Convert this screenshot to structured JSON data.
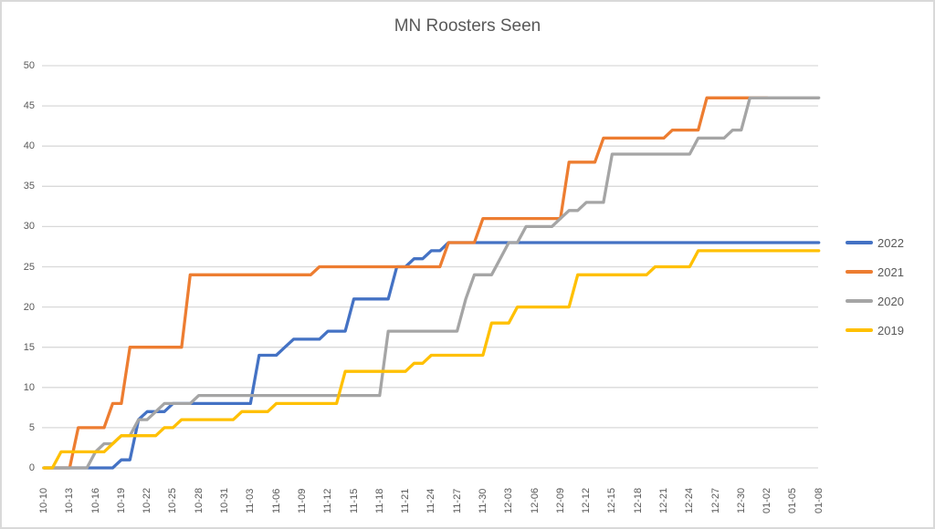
{
  "chart_data": {
    "type": "line",
    "title": "MN Roosters Seen",
    "x_axis": {
      "tick_labels": [
        "10-10",
        "10-13",
        "10-16",
        "10-19",
        "10-22",
        "10-25",
        "10-28",
        "10-31",
        "11-03",
        "11-06",
        "11-09",
        "11-12",
        "11-15",
        "11-18",
        "11-21",
        "11-24",
        "11-27",
        "11-30",
        "12-03",
        "12-06",
        "12-09",
        "12-12",
        "12-15",
        "12-18",
        "12-21",
        "12-24",
        "12-27",
        "12-30",
        "01-02",
        "01-05",
        "01-08"
      ],
      "tick_interval_days": 3,
      "label_rotation_deg": 90
    },
    "y_axis": {
      "tick_labels": [
        "0",
        "5",
        "10",
        "15",
        "20",
        "25",
        "30",
        "35",
        "40",
        "45",
        "50"
      ],
      "min": 0,
      "max": 50,
      "step": 5
    },
    "grid": "horizontal",
    "legend_position": "right",
    "series": [
      {
        "name": "2022",
        "color": "#4472C4",
        "points_date_value": [
          [
            "10-10",
            0
          ],
          [
            "10-19",
            1
          ],
          [
            "10-21",
            6
          ],
          [
            "10-22",
            7
          ],
          [
            "10-25",
            8
          ],
          [
            "11-04",
            14
          ],
          [
            "11-07",
            15
          ],
          [
            "11-08",
            16
          ],
          [
            "11-12",
            17
          ],
          [
            "11-15",
            21
          ],
          [
            "11-20",
            25
          ],
          [
            "11-22",
            26
          ],
          [
            "11-24",
            27
          ],
          [
            "11-26",
            28
          ],
          [
            "01-08",
            28
          ]
        ]
      },
      {
        "name": "2021",
        "color": "#ED7D31",
        "points_date_value": [
          [
            "10-10",
            0
          ],
          [
            "10-14",
            5
          ],
          [
            "10-18",
            8
          ],
          [
            "10-20",
            15
          ],
          [
            "10-27",
            24
          ],
          [
            "11-11",
            25
          ],
          [
            "11-26",
            28
          ],
          [
            "11-30",
            31
          ],
          [
            "12-10",
            38
          ],
          [
            "12-14",
            41
          ],
          [
            "12-22",
            42
          ],
          [
            "12-26",
            46
          ],
          [
            "01-02",
            46
          ]
        ]
      },
      {
        "name": "2020",
        "color": "#A5A5A5",
        "points_date_value": [
          [
            "10-10",
            0
          ],
          [
            "10-16",
            2
          ],
          [
            "10-17",
            3
          ],
          [
            "10-19",
            4
          ],
          [
            "10-21",
            6
          ],
          [
            "10-23",
            7
          ],
          [
            "10-24",
            8
          ],
          [
            "10-28",
            9
          ],
          [
            "11-19",
            17
          ],
          [
            "11-28",
            21
          ],
          [
            "11-29",
            24
          ],
          [
            "12-02",
            26
          ],
          [
            "12-03",
            28
          ],
          [
            "12-05",
            30
          ],
          [
            "12-09",
            31
          ],
          [
            "12-10",
            32
          ],
          [
            "12-12",
            33
          ],
          [
            "12-15",
            39
          ],
          [
            "12-25",
            41
          ],
          [
            "12-29",
            42
          ],
          [
            "12-31",
            46
          ],
          [
            "01-08",
            46
          ]
        ]
      },
      {
        "name": "2019",
        "color": "#FFC000",
        "points_date_value": [
          [
            "10-10",
            0
          ],
          [
            "10-12",
            2
          ],
          [
            "10-18",
            3
          ],
          [
            "10-19",
            4
          ],
          [
            "10-24",
            5
          ],
          [
            "10-26",
            6
          ],
          [
            "11-02",
            7
          ],
          [
            "11-06",
            8
          ],
          [
            "11-14",
            12
          ],
          [
            "11-22",
            13
          ],
          [
            "11-24",
            14
          ],
          [
            "12-01",
            18
          ],
          [
            "12-04",
            20
          ],
          [
            "12-11",
            24
          ],
          [
            "12-20",
            25
          ],
          [
            "12-25",
            27
          ],
          [
            "01-08",
            27
          ]
        ]
      }
    ],
    "draw_order": [
      "2022",
      "2021",
      "2020",
      "2019"
    ]
  },
  "colors": {
    "grid": "#D9D9D9",
    "border": "#D9D9D9",
    "axis_text": "#595959",
    "title_text": "#595959",
    "background": "#FFFFFF"
  }
}
